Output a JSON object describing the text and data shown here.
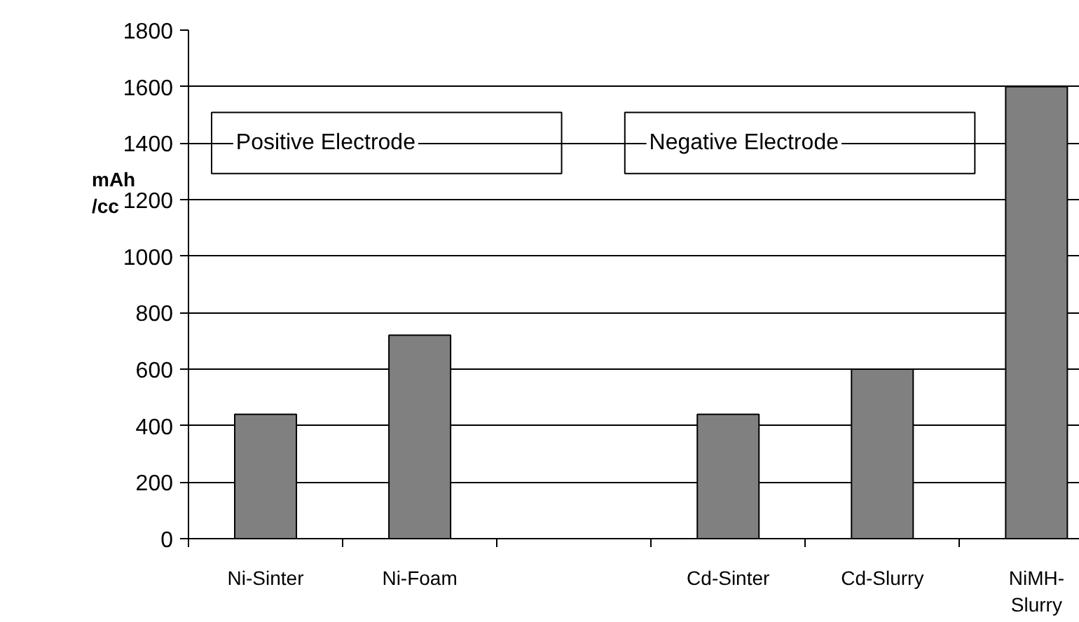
{
  "chart_data": {
    "type": "bar",
    "ylabel": "mAh /cc",
    "categories": [
      "Ni-Sinter",
      "Ni-Foam",
      null,
      "Cd-Sinter",
      "Cd-Slurry",
      "NiMH-Slurry"
    ],
    "values": [
      440,
      720,
      null,
      440,
      600,
      1600
    ],
    "color": "#808080",
    "ylim": [
      0,
      1800
    ],
    "yticks": [
      0,
      200,
      400,
      600,
      800,
      1000,
      1200,
      1400,
      1600,
      1800
    ],
    "grid": "y",
    "annotations": [
      "Positive Electrode",
      "Negative Electrode"
    ]
  }
}
